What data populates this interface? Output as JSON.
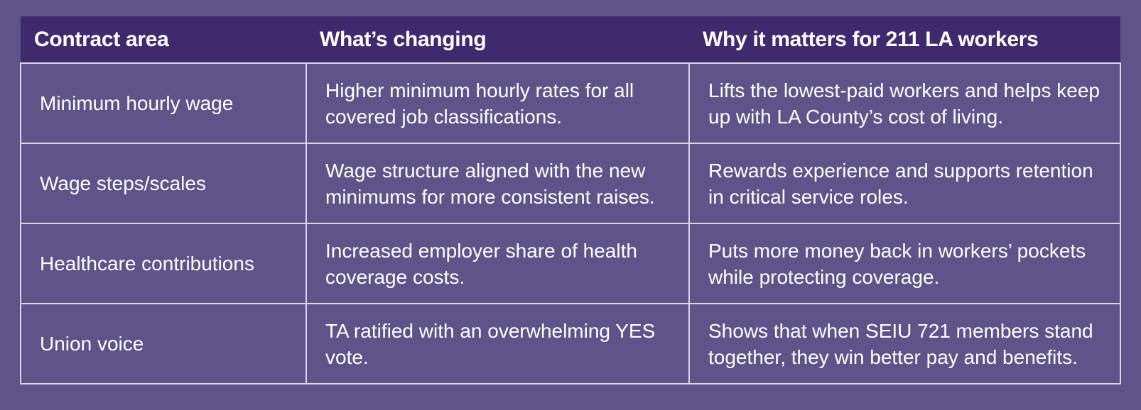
{
  "table": {
    "headers": [
      "Contract area",
      "What’s changing",
      "Why it matters for 211 LA workers"
    ],
    "rows": [
      [
        "Minimum hourly wage",
        "Higher minimum hourly rates for all covered job classifications.",
        "Lifts the lowest-paid workers and helps keep up with LA County’s cost of living."
      ],
      [
        "Wage steps/scales",
        "Wage structure aligned with the new minimums for more consistent raises.",
        "Rewards experience and supports retention in critical service roles."
      ],
      [
        "Healthcare contributions",
        "Increased employer share of health coverage costs.",
        "Puts more money back in workers’ pockets while protecting coverage."
      ],
      [
        "Union voice",
        "TA ratified with an overwhelming YES vote.",
        "Shows that when SEIU 721 members stand together, they win better pay and benefits."
      ]
    ]
  }
}
